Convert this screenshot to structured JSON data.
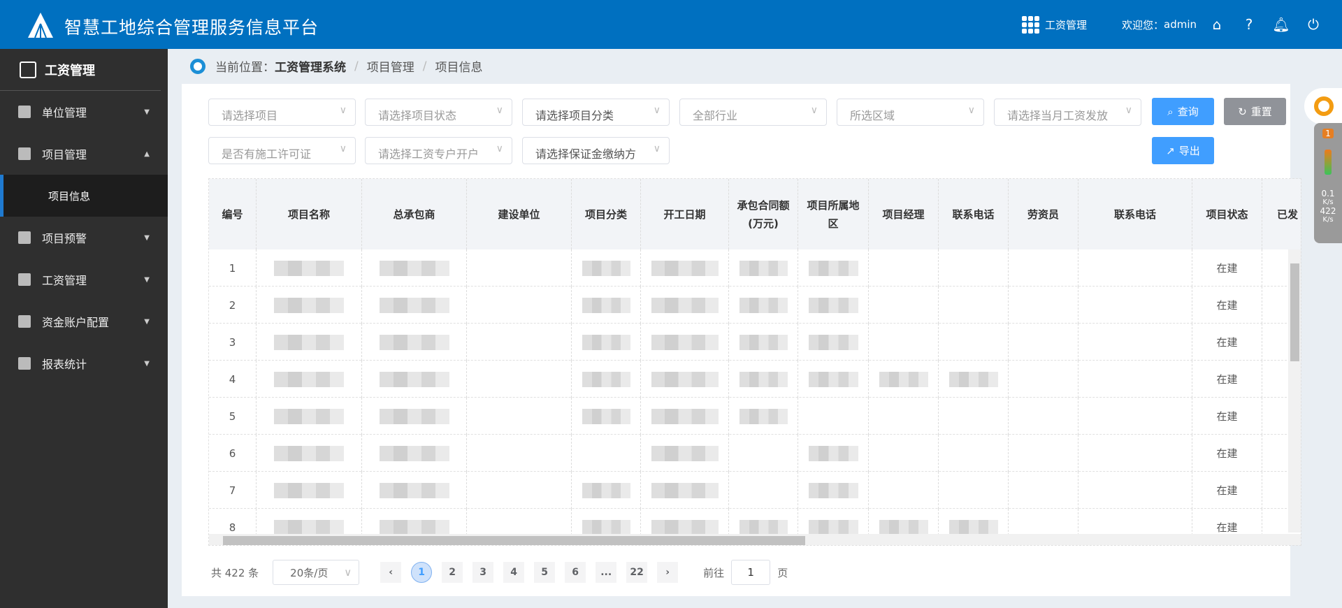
{
  "header": {
    "title": "智慧工地综合管理服务信息平台",
    "module": "工资管理",
    "welcome": "欢迎您：",
    "user": "admin"
  },
  "sidebar": {
    "title": "工资管理",
    "items": [
      {
        "label": "单位管理",
        "icon": "building-icon",
        "arrow": "▼"
      },
      {
        "label": "项目管理",
        "icon": "folder-icon",
        "arrow": "▲",
        "children": [
          "项目信息"
        ]
      },
      {
        "label": "项目预警",
        "icon": "warning-icon",
        "arrow": "▼"
      },
      {
        "label": "工资管理",
        "icon": "wallet-icon",
        "arrow": "▼"
      },
      {
        "label": "资金账户配置",
        "icon": "yen-icon",
        "arrow": "▼"
      },
      {
        "label": "报表统计",
        "icon": "clipboard-icon",
        "arrow": "▼"
      }
    ]
  },
  "breadcrumb": {
    "prefix": "当前位置：",
    "items": [
      "工资管理系统",
      "项目管理",
      "项目信息"
    ]
  },
  "filters": [
    {
      "placeholder": "请选择项目"
    },
    {
      "placeholder": "请选择项目状态"
    },
    {
      "value": "请选择项目分类"
    },
    {
      "placeholder": "全部行业"
    },
    {
      "placeholder": "所选区域"
    },
    {
      "placeholder": "请选择当月工资发放"
    },
    {
      "placeholder": "是否有施工许可证"
    },
    {
      "placeholder": "请选择工资专户开户"
    },
    {
      "value": "请选择保证金缴纳方"
    }
  ],
  "buttons": {
    "query": "查询",
    "reset": "重置",
    "export": "导出"
  },
  "colors": {
    "primary": "#0070c0",
    "button": "#409eff",
    "reset": "#909399",
    "sidebar": "#2f2f2f"
  },
  "table": {
    "columns": [
      "编号",
      "项目名称",
      "总承包商",
      "建设单位",
      "项目分类",
      "开工日期",
      "承包合同额(万元)",
      "项目所属地区",
      "项目经理",
      "联系电话",
      "劳资员",
      "联系电话",
      "项目状态",
      "已发"
    ],
    "rows": [
      {
        "no": "1",
        "status": "在建"
      },
      {
        "no": "2",
        "status": "在建"
      },
      {
        "no": "3",
        "status": "在建"
      },
      {
        "no": "4",
        "status": "在建"
      },
      {
        "no": "5",
        "status": "在建"
      },
      {
        "no": "6",
        "status": "在建"
      },
      {
        "no": "7",
        "status": "在建"
      },
      {
        "no": "8",
        "status": "在建"
      }
    ]
  },
  "pagination": {
    "total": "共 422 条",
    "page_size": "20条/页",
    "pages": [
      "1",
      "2",
      "3",
      "4",
      "5",
      "6",
      "...",
      "22"
    ],
    "current": "1",
    "goto_label": "前往",
    "goto_value": "1",
    "page_unit": "页"
  },
  "widget": {
    "badge": "1",
    "up": "0.1",
    "down": "422",
    "unit": "K/s"
  }
}
